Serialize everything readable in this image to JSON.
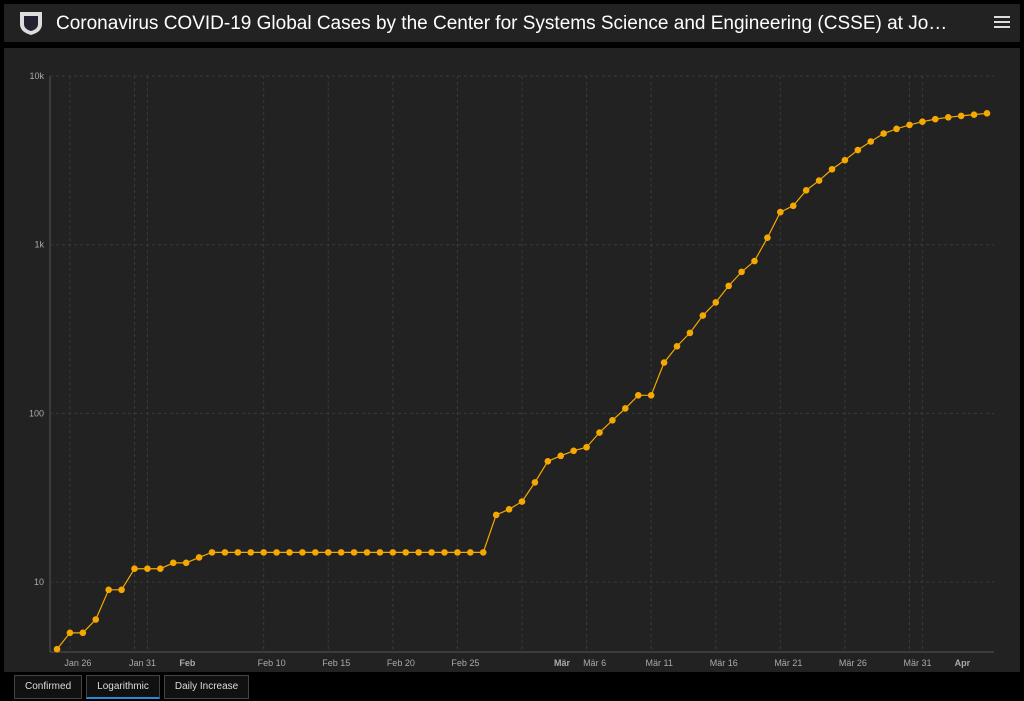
{
  "header": {
    "title": "Coronavirus COVID-19 Global Cases by the Center for Systems Science and Engineering (CSSE) at Jo…"
  },
  "chart_data": {
    "type": "line",
    "log_scale": true,
    "grid": true,
    "x": [
      "Jan 25",
      "Jan 26",
      "Jan 27",
      "Jan 28",
      "Jan 29",
      "Jan 30",
      "Jan 31",
      "Feb 1",
      "Feb 2",
      "Feb 3",
      "Feb 4",
      "Feb 5",
      "Feb 6",
      "Feb 7",
      "Feb 8",
      "Feb 9",
      "Feb 10",
      "Feb 11",
      "Feb 12",
      "Feb 13",
      "Feb 14",
      "Feb 15",
      "Feb 16",
      "Feb 17",
      "Feb 18",
      "Feb 19",
      "Feb 20",
      "Feb 21",
      "Feb 22",
      "Feb 23",
      "Feb 24",
      "Feb 25",
      "Feb 26",
      "Feb 27",
      "Feb 28",
      "Feb 29",
      "Mär 1",
      "Mär 2",
      "Mär 3",
      "Mär 4",
      "Mär 5",
      "Mär 6",
      "Mär 7",
      "Mär 8",
      "Mär 9",
      "Mär 10",
      "Mär 11",
      "Mär 12",
      "Mär 13",
      "Mär 14",
      "Mär 15",
      "Mär 16",
      "Mär 17",
      "Mär 18",
      "Mär 19",
      "Mär 20",
      "Mär 21",
      "Mär 22",
      "Mär 23",
      "Mär 24",
      "Mär 25",
      "Mär 26",
      "Mär 27",
      "Mär 28",
      "Mär 29",
      "Mär 30",
      "Mär 31",
      "Apr 1",
      "Apr 2",
      "Apr 3",
      "Apr 4",
      "Apr 5",
      "Apr 6"
    ],
    "series": [
      {
        "name": "Confirmed",
        "color": "#f5a800",
        "values": [
          4,
          5,
          5,
          6,
          9,
          9,
          12,
          12,
          12,
          13,
          13,
          14,
          15,
          15,
          15,
          15,
          15,
          15,
          15,
          15,
          15,
          15,
          15,
          15,
          15,
          15,
          15,
          15,
          15,
          15,
          15,
          15,
          15,
          15,
          25,
          27,
          30,
          39,
          52,
          56,
          60,
          63,
          77,
          91,
          107,
          128,
          128,
          200,
          250,
          300,
          380,
          455,
          570,
          690,
          800,
          1100,
          1560,
          1700,
          2100,
          2400,
          2800,
          3170,
          3640,
          4090,
          4560,
          4860,
          5130,
          5360,
          5550,
          5690,
          5800,
          5900,
          6010
        ]
      }
    ],
    "ylim": [
      3.85,
      10000
    ],
    "yticks": [
      10,
      100,
      {
        "value": 1000,
        "label": "1k"
      },
      {
        "value": 10000,
        "label": "10k"
      }
    ],
    "xticks": [
      "Jan 26",
      "Jan 31",
      {
        "value": "Feb 1",
        "label": "Feb"
      },
      "Feb 10",
      "Feb 15",
      "Feb 20",
      "Feb 25",
      {
        "value": "Mär 1",
        "label": "Mär"
      },
      "Mär 6",
      "Mär 11",
      "Mär 16",
      "Mär 21",
      "Mär 26",
      "Mär 31",
      {
        "value": "Apr 1",
        "label": "Apr"
      }
    ]
  },
  "tabs": [
    "Confirmed",
    "Logarithmic",
    "Daily Increase"
  ]
}
